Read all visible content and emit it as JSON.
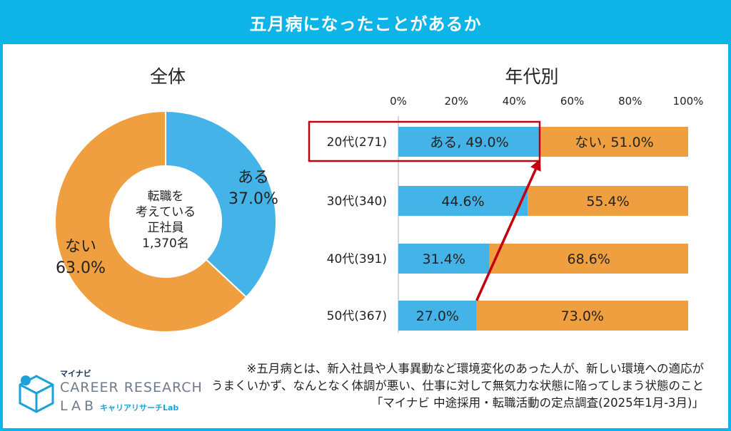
{
  "header": {
    "title": "五月病になったことがあるか"
  },
  "colors": {
    "aru": "#44b4e8",
    "nai": "#ef9f40",
    "accent": "#0cb4e8",
    "highlight": "#c2000f"
  },
  "chart_data": [
    {
      "type": "pie",
      "title": "全体",
      "center_label": [
        "転職を",
        "考えている",
        "正社員",
        "1,370名"
      ],
      "slices": [
        {
          "label": "ある",
          "value": 37.0,
          "display": "37.0%"
        },
        {
          "label": "ない",
          "value": 63.0,
          "display": "63.0%"
        }
      ]
    },
    {
      "type": "bar",
      "stacked": true,
      "orientation": "horizontal",
      "title": "年代別",
      "categories": [
        "20代(271)",
        "30代(340)",
        "40代(391)",
        "50代(367)"
      ],
      "series": [
        {
          "name": "ある",
          "values": [
            49.0,
            44.6,
            31.4,
            27.0
          ],
          "labels": [
            "ある, 49.0%",
            "44.6%",
            "31.4%",
            "27.0%"
          ]
        },
        {
          "name": "ない",
          "values": [
            51.0,
            55.4,
            68.6,
            73.0
          ],
          "labels": [
            "ない, 51.0%",
            "55.4%",
            "68.6%",
            "73.0%"
          ]
        }
      ],
      "xlim": [
        0,
        100
      ],
      "xticks": [
        "0%",
        "20%",
        "40%",
        "60%",
        "80%",
        "100%"
      ]
    }
  ],
  "footnote": {
    "lines": [
      "※五月病とは、新入社員や人事異動など環境変化のあった人が、新しい環境への適応が",
      "うまくいかず、なんとなく体調が悪い、仕事に対して無気力な状態に陥ってしまう状態のこと",
      "「マイナビ 中途採用・転職活動の定点調査(2025年1月-3月)」"
    ]
  },
  "logo": {
    "sub": "マイナビ",
    "main": "CAREER RESEARCH",
    "lab": "LAB",
    "kana": "キャリアリサーチLab"
  }
}
